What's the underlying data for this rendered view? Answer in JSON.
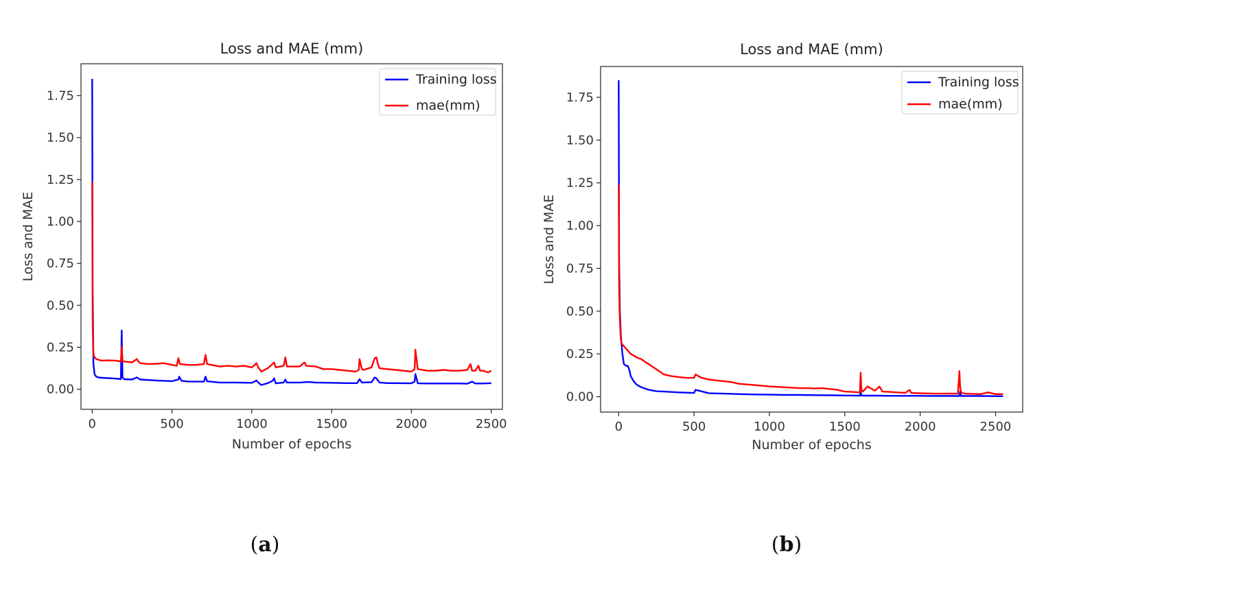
{
  "chart_data": [
    {
      "type": "line",
      "panel_label_open": "(",
      "panel_label_letter": "a",
      "panel_label_close": ")",
      "title": "Loss and MAE (mm)",
      "xlabel": "Number of epochs",
      "ylabel": "Loss and MAE",
      "xlim": [
        -70,
        2570
      ],
      "ylim": [
        -0.12,
        1.94
      ],
      "xticks": [
        0,
        500,
        1000,
        1500,
        2000,
        2500
      ],
      "yticks": [
        0.0,
        0.25,
        0.5,
        0.75,
        1.0,
        1.25,
        1.5,
        1.75
      ],
      "ytick_labels": [
        "0.00",
        "0.25",
        "0.50",
        "0.75",
        "1.00",
        "1.25",
        "1.50",
        "1.75"
      ],
      "legend_position": "top-right",
      "series": [
        {
          "name": "Training loss",
          "color": "#0000ff",
          "x": [
            0,
            3,
            8,
            15,
            25,
            40,
            60,
            100,
            150,
            180,
            185,
            190,
            200,
            250,
            280,
            300,
            400,
            500,
            540,
            545,
            560,
            600,
            700,
            710,
            720,
            800,
            900,
            1000,
            1030,
            1040,
            1060,
            1100,
            1130,
            1140,
            1150,
            1200,
            1210,
            1220,
            1300,
            1350,
            1400,
            1500,
            1600,
            1660,
            1675,
            1690,
            1750,
            1770,
            1780,
            1800,
            1850,
            1900,
            2000,
            2020,
            2025,
            2040,
            2100,
            2200,
            2300,
            2350,
            2380,
            2400,
            2450,
            2500
          ],
          "y": [
            1.85,
            0.6,
            0.15,
            0.09,
            0.075,
            0.07,
            0.068,
            0.066,
            0.063,
            0.06,
            0.35,
            0.07,
            0.06,
            0.058,
            0.07,
            0.058,
            0.052,
            0.048,
            0.058,
            0.075,
            0.05,
            0.046,
            0.045,
            0.075,
            0.047,
            0.04,
            0.04,
            0.038,
            0.052,
            0.04,
            0.025,
            0.036,
            0.05,
            0.065,
            0.035,
            0.04,
            0.058,
            0.04,
            0.04,
            0.043,
            0.04,
            0.038,
            0.036,
            0.036,
            0.06,
            0.04,
            0.042,
            0.07,
            0.065,
            0.04,
            0.036,
            0.036,
            0.035,
            0.045,
            0.09,
            0.035,
            0.034,
            0.034,
            0.034,
            0.033,
            0.045,
            0.034,
            0.034,
            0.036
          ]
        },
        {
          "name": "mae(mm)",
          "color": "#ff0000",
          "x": [
            0,
            3,
            6,
            10,
            15,
            25,
            40,
            60,
            100,
            150,
            180,
            185,
            190,
            200,
            250,
            280,
            290,
            300,
            350,
            400,
            450,
            500,
            530,
            540,
            550,
            600,
            650,
            700,
            710,
            720,
            800,
            850,
            900,
            950,
            1000,
            1030,
            1040,
            1060,
            1100,
            1130,
            1140,
            1150,
            1200,
            1210,
            1220,
            1250,
            1300,
            1330,
            1340,
            1400,
            1450,
            1500,
            1550,
            1600,
            1650,
            1670,
            1675,
            1690,
            1700,
            1750,
            1770,
            1780,
            1790,
            1800,
            1850,
            1900,
            1950,
            2000,
            2020,
            2025,
            2040,
            2100,
            2150,
            2200,
            2250,
            2300,
            2350,
            2370,
            2380,
            2400,
            2420,
            2430,
            2450,
            2480,
            2500
          ],
          "y": [
            1.24,
            0.4,
            0.25,
            0.2,
            0.19,
            0.18,
            0.175,
            0.17,
            0.172,
            0.17,
            0.165,
            0.255,
            0.17,
            0.165,
            0.16,
            0.18,
            0.165,
            0.155,
            0.15,
            0.152,
            0.155,
            0.145,
            0.14,
            0.185,
            0.15,
            0.145,
            0.145,
            0.15,
            0.205,
            0.15,
            0.135,
            0.14,
            0.135,
            0.14,
            0.13,
            0.155,
            0.13,
            0.105,
            0.125,
            0.15,
            0.16,
            0.13,
            0.14,
            0.19,
            0.135,
            0.135,
            0.135,
            0.16,
            0.14,
            0.135,
            0.12,
            0.12,
            0.115,
            0.11,
            0.105,
            0.115,
            0.18,
            0.12,
            0.115,
            0.13,
            0.185,
            0.19,
            0.15,
            0.125,
            0.12,
            0.115,
            0.11,
            0.105,
            0.12,
            0.235,
            0.12,
            0.11,
            0.11,
            0.115,
            0.11,
            0.11,
            0.115,
            0.15,
            0.11,
            0.11,
            0.14,
            0.11,
            0.11,
            0.1,
            0.11
          ]
        }
      ]
    },
    {
      "type": "line",
      "panel_label_open": "(",
      "panel_label_letter": "b",
      "panel_label_close": ")",
      "title": "Loss and MAE (mm)",
      "xlabel": "Number of epochs",
      "ylabel": "Loss and MAE",
      "xlim": [
        -120,
        2680
      ],
      "ylim": [
        -0.09,
        1.93
      ],
      "xticks": [
        0,
        500,
        1000,
        1500,
        2000,
        2500
      ],
      "yticks": [
        0.0,
        0.25,
        0.5,
        0.75,
        1.0,
        1.25,
        1.5,
        1.75
      ],
      "ytick_labels": [
        "0.00",
        "0.25",
        "0.50",
        "0.75",
        "1.00",
        "1.25",
        "1.50",
        "1.75"
      ],
      "legend_position": "top-right",
      "series": [
        {
          "name": "Training loss",
          "color": "#0000ff",
          "x": [
            0,
            3,
            8,
            15,
            25,
            35,
            50,
            60,
            70,
            80,
            100,
            120,
            150,
            200,
            250,
            300,
            400,
            500,
            510,
            600,
            700,
            800,
            900,
            1000,
            1100,
            1200,
            1300,
            1400,
            1500,
            1600,
            1605,
            1610,
            1700,
            1800,
            1900,
            2000,
            2100,
            2200,
            2260,
            2265,
            2270,
            2300,
            2400,
            2500,
            2550
          ],
          "y": [
            1.85,
            0.8,
            0.5,
            0.35,
            0.25,
            0.19,
            0.18,
            0.18,
            0.16,
            0.12,
            0.09,
            0.07,
            0.055,
            0.04,
            0.032,
            0.03,
            0.025,
            0.022,
            0.04,
            0.02,
            0.018,
            0.015,
            0.013,
            0.012,
            0.01,
            0.01,
            0.009,
            0.008,
            0.007,
            0.006,
            0.03,
            0.006,
            0.006,
            0.005,
            0.005,
            0.005,
            0.004,
            0.004,
            0.004,
            0.03,
            0.004,
            0.004,
            0.004,
            0.003,
            0.003
          ]
        },
        {
          "name": "mae(mm)",
          "color": "#ff0000",
          "x": [
            0,
            3,
            6,
            10,
            15,
            20,
            30,
            40,
            60,
            80,
            100,
            130,
            150,
            180,
            200,
            250,
            300,
            350,
            400,
            450,
            500,
            510,
            550,
            600,
            650,
            700,
            750,
            800,
            900,
            1000,
            1100,
            1200,
            1250,
            1300,
            1350,
            1400,
            1450,
            1500,
            1550,
            1600,
            1605,
            1610,
            1620,
            1650,
            1700,
            1730,
            1750,
            1800,
            1850,
            1900,
            1930,
            1940,
            2000,
            2100,
            2200,
            2250,
            2260,
            2265,
            2270,
            2280,
            2300,
            2400,
            2450,
            2500,
            2550
          ],
          "y": [
            1.24,
            0.65,
            0.5,
            0.4,
            0.33,
            0.31,
            0.3,
            0.29,
            0.27,
            0.25,
            0.24,
            0.225,
            0.22,
            0.2,
            0.19,
            0.16,
            0.13,
            0.12,
            0.115,
            0.11,
            0.11,
            0.13,
            0.11,
            0.1,
            0.095,
            0.09,
            0.085,
            0.075,
            0.068,
            0.06,
            0.055,
            0.05,
            0.05,
            0.048,
            0.05,
            0.045,
            0.04,
            0.03,
            0.028,
            0.025,
            0.14,
            0.04,
            0.03,
            0.06,
            0.035,
            0.06,
            0.03,
            0.028,
            0.025,
            0.022,
            0.04,
            0.022,
            0.02,
            0.018,
            0.018,
            0.018,
            0.15,
            0.06,
            0.03,
            0.02,
            0.018,
            0.015,
            0.025,
            0.015,
            0.015
          ]
        }
      ]
    }
  ]
}
